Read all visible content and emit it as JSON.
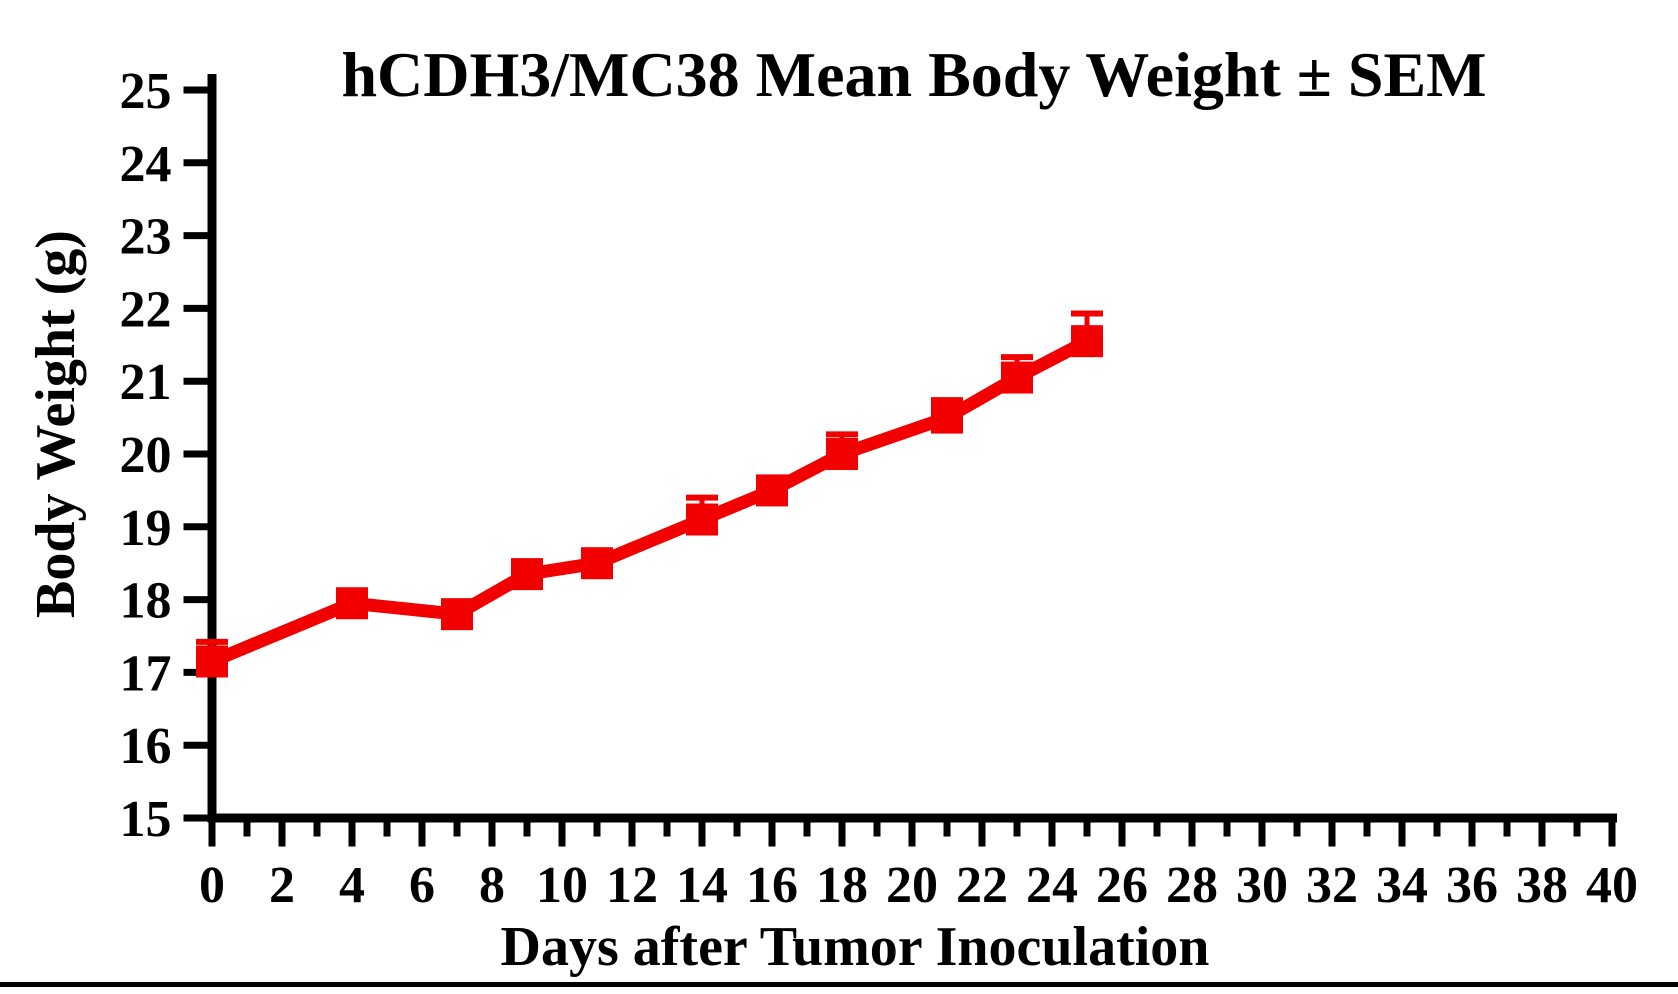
{
  "chart_data": {
    "type": "line",
    "title": "hCDH3/MC38 Mean Body Weight ± SEM",
    "xlabel": "Days after Tumor Inoculation",
    "ylabel": "Body Weight (g)",
    "x": [
      0,
      4,
      7,
      9,
      11,
      14,
      16,
      18,
      21,
      23,
      25
    ],
    "series": [
      {
        "name": "hCDH3/MC38 mean body weight",
        "values": [
          17.15,
          17.95,
          17.8,
          18.35,
          18.5,
          19.1,
          19.5,
          20.0,
          20.5,
          21.05,
          21.55
        ],
        "sem": [
          0.27,
          0.1,
          0.1,
          0.1,
          0.1,
          0.3,
          0.1,
          0.27,
          0.24,
          0.28,
          0.38
        ],
        "color": "#f20000",
        "marker": "square"
      }
    ],
    "error_bars": "upper",
    "xlim": [
      0,
      40
    ],
    "ylim": [
      15,
      25
    ],
    "x_tick_labels": [
      0,
      2,
      4,
      6,
      8,
      10,
      12,
      14,
      16,
      18,
      20,
      22,
      24,
      26,
      28,
      30,
      32,
      34,
      36,
      38,
      40
    ],
    "x_minor_tick_step": 1,
    "y_tick_labels": [
      15,
      16,
      17,
      18,
      19,
      20,
      21,
      22,
      23,
      24,
      25
    ],
    "grid": false,
    "legend": "none",
    "axis_color": "#000000",
    "background_color": "#ffffff"
  }
}
